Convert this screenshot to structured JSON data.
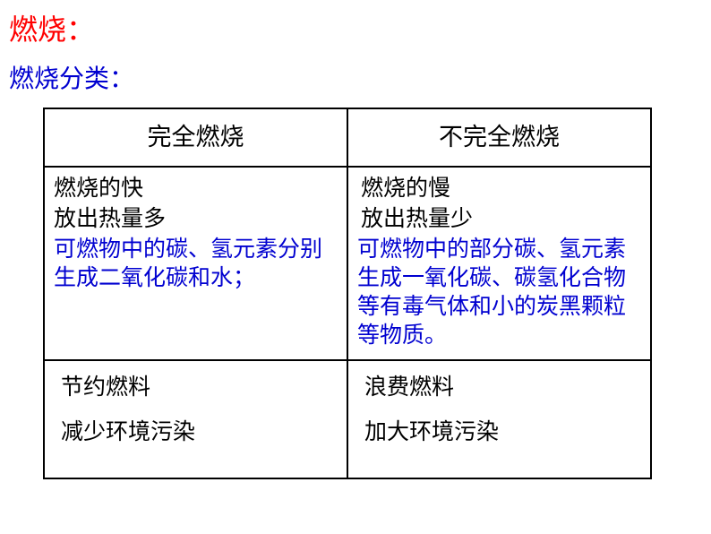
{
  "colors": {
    "title": "#ff0000",
    "subtitle": "#0000d0",
    "headerText": "#000000",
    "bodyBlue": "#0000d0",
    "bodyBlack": "#000000",
    "border": "#000000",
    "background": "#ffffff"
  },
  "fontSizes": {
    "title": 32,
    "subtitle": 28,
    "header": 27,
    "body": 25
  },
  "title": "燃烧：",
  "subtitle": "燃烧分类：",
  "table": {
    "headers": {
      "col1": "完全燃烧",
      "col2": "不完全燃烧"
    },
    "row2": {
      "col1": {
        "line1": "燃烧的快",
        "line2": "放出热量多",
        "para": "可燃物中的碳、氢元素分别生成二氧化碳和水；"
      },
      "col2": {
        "line1": "燃烧的慢",
        "line2": "放出热量少",
        "para": "可燃物中的部分碳、氢元素生成一氧化碳、碳氢化合物等有毒气体和小的炭黑颗粒等物质。"
      }
    },
    "row3": {
      "col1": {
        "line1": "节约燃料",
        "line2": "减少环境污染"
      },
      "col2": {
        "line1": "浪费燃料",
        "line2": "加大环境污染"
      }
    }
  }
}
